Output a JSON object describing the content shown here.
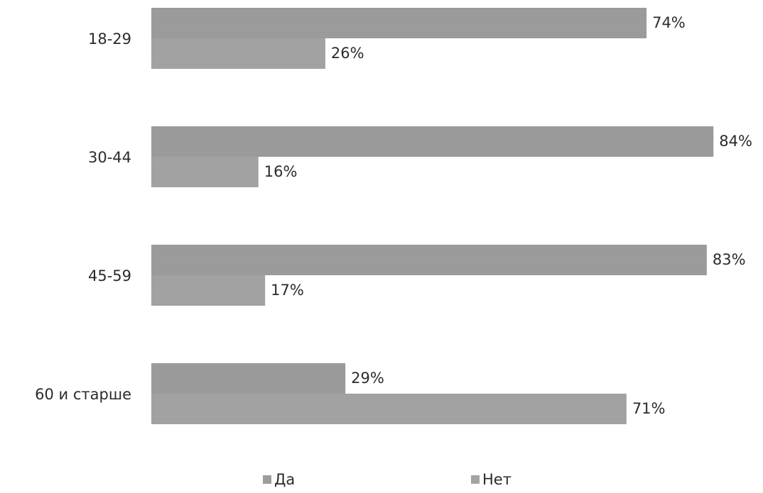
{
  "chart_data": {
    "type": "bar",
    "orientation": "horizontal",
    "categories": [
      "18-29",
      "30-44",
      "45-59",
      "60 и старше"
    ],
    "series": [
      {
        "name": "Да",
        "values": [
          74,
          84,
          83,
          29
        ],
        "labels": [
          "74%",
          "84%",
          "83%",
          "29%"
        ],
        "color": "#9c9c9c"
      },
      {
        "name": "Нет",
        "values": [
          26,
          16,
          17,
          71
        ],
        "labels": [
          "26%",
          "16%",
          "17%",
          "71%"
        ],
        "color": "#a4a4a4"
      }
    ],
    "xlim": [
      0,
      100
    ],
    "grid": false,
    "legend_position": "bottom"
  }
}
